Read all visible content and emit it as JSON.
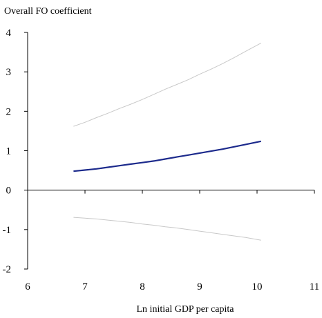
{
  "chart_data": {
    "type": "line",
    "title": "",
    "xlabel": "Ln initial GDP per capita",
    "ylabel": "Overall FO coefficient",
    "xlim": [
      6,
      11
    ],
    "ylim": [
      -2,
      4
    ],
    "xticks": [
      6,
      7,
      8,
      9,
      10,
      11
    ],
    "yticks": [
      -2,
      -1,
      0,
      1,
      2,
      3,
      4
    ],
    "grid": false,
    "legend": "none",
    "series": [
      {
        "role": "upper-band",
        "color": "#c8c8c8",
        "x": [
          6.8,
          7.0,
          7.2,
          7.4,
          7.6,
          7.8,
          8.0,
          8.2,
          8.4,
          8.6,
          8.8,
          9.0,
          9.2,
          9.4,
          9.6,
          9.8,
          10.07
        ],
        "y": [
          1.62,
          1.72,
          1.84,
          1.95,
          2.07,
          2.18,
          2.3,
          2.43,
          2.56,
          2.68,
          2.8,
          2.94,
          3.07,
          3.21,
          3.36,
          3.52,
          3.73
        ]
      },
      {
        "role": "estimate",
        "color": "#1c2a8c",
        "x": [
          6.8,
          7.0,
          7.2,
          7.4,
          7.6,
          7.8,
          8.0,
          8.2,
          8.4,
          8.6,
          8.8,
          9.0,
          9.2,
          9.4,
          9.6,
          9.8,
          10.07
        ],
        "y": [
          0.48,
          0.51,
          0.54,
          0.58,
          0.62,
          0.66,
          0.7,
          0.74,
          0.79,
          0.84,
          0.89,
          0.94,
          0.99,
          1.04,
          1.1,
          1.16,
          1.24
        ]
      },
      {
        "role": "lower-band",
        "color": "#c8c8c8",
        "x": [
          6.8,
          7.0,
          7.2,
          7.4,
          7.6,
          7.8,
          8.0,
          8.2,
          8.4,
          8.6,
          8.8,
          9.0,
          9.2,
          9.4,
          9.6,
          9.8,
          10.07
        ],
        "y": [
          -0.69,
          -0.71,
          -0.73,
          -0.76,
          -0.79,
          -0.82,
          -0.86,
          -0.89,
          -0.93,
          -0.96,
          -1.0,
          -1.04,
          -1.08,
          -1.12,
          -1.16,
          -1.2,
          -1.27
        ]
      }
    ]
  }
}
